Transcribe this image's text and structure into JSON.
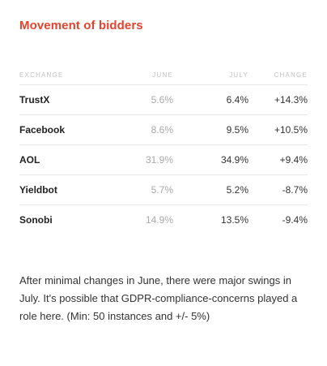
{
  "card": {
    "title": "Movement of bidders",
    "accent_color": "#e8412c",
    "columns": [
      "EXCHANGE",
      "JUNE",
      "JULY",
      "CHANGE"
    ],
    "rows": [
      {
        "exchange": "TrustX",
        "june": "5.6%",
        "july": "6.4%",
        "change": "+14.3%"
      },
      {
        "exchange": "Facebook",
        "june": "8.6%",
        "july": "9.5%",
        "change": "+10.5%"
      },
      {
        "exchange": "AOL",
        "june": "31.9%",
        "july": "34.9%",
        "change": "+9.4%"
      },
      {
        "exchange": "Yieldbot",
        "june": "5.7%",
        "july": "5.2%",
        "change": "-8.7%"
      },
      {
        "exchange": "Sonobi",
        "june": "14.9%",
        "july": "13.5%",
        "change": "-9.4%"
      }
    ],
    "note": "After minimal changes in June, there were major swings in July. It's possible that GDPR-compliance-concerns played a role here. (Min: 50 instances and +/- 5%)"
  }
}
